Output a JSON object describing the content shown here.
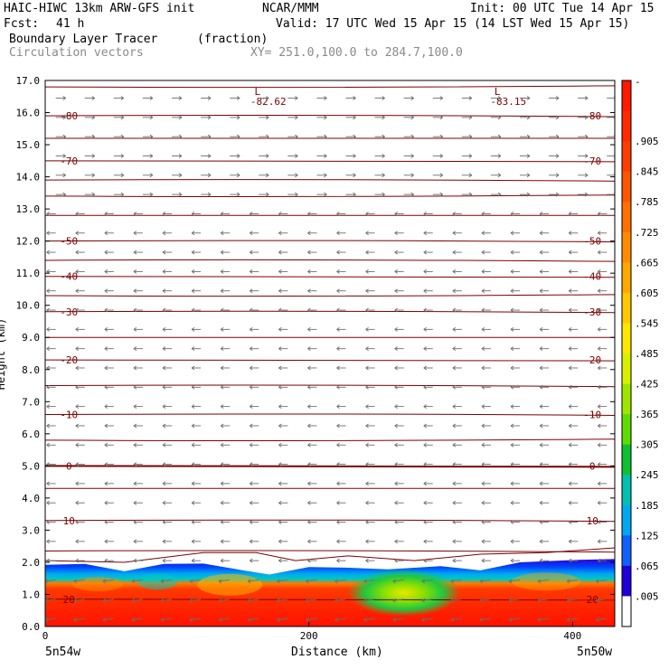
{
  "header": {
    "title_left": "HAIC-HIWC 13km ARW-GFS init",
    "org": "NCAR/MMM",
    "init": "Init: 00 UTC Tue 14 Apr 15",
    "fcst_label": "Fcst:",
    "fcst_value": "41 h",
    "valid": "Valid: 17 UTC Wed 15 Apr 15 (14 LST Wed 15 Apr 15)",
    "field": "Boundary Layer Tracer",
    "field_units": "(fraction)",
    "overlay": "Circulation vectors",
    "xy": "XY= 251.0,100.0 to 284.7,100.0"
  },
  "chart_data": {
    "type": "heatmap",
    "title": "Boundary Layer Tracer",
    "xlabel": "Distance (km)",
    "ylabel": "Height (km)",
    "xlim": [
      0,
      432
    ],
    "ylim": [
      0,
      17
    ],
    "x_ticks": [
      "0",
      "200",
      "400"
    ],
    "x_end_labels": [
      "5n54w",
      "5n50w"
    ],
    "y_ticks": [
      "0.0",
      "1.0",
      "2.0",
      "3.0",
      "4.0",
      "5.0",
      "6.0",
      "7.0",
      "8.0",
      "9.0",
      "10.0",
      "11.0",
      "12.0",
      "13.0",
      "14.0",
      "15.0",
      "16.0",
      "17.0"
    ],
    "colorbar": {
      "labels": [
        "-",
        ".905",
        ".845",
        ".785",
        ".725",
        ".665",
        ".605",
        ".545",
        ".485",
        ".425",
        ".365",
        ".305",
        ".245",
        ".185",
        ".125",
        ".065",
        ".005"
      ],
      "colors": [
        "#ff1a00",
        "#ff2a00",
        "#ff3c00",
        "#ff5500",
        "#ff7000",
        "#ff8c00",
        "#ffa800",
        "#ffc800",
        "#ffe600",
        "#d8f000",
        "#9ee600",
        "#5ddc00",
        "#10c030",
        "#00c0b0",
        "#00a8f0",
        "#1060ff",
        "#2000d8",
        "#ffffff"
      ]
    },
    "boundary_layer_top_km": [
      [
        0,
        1.92
      ],
      [
        30,
        1.95
      ],
      [
        60,
        1.72
      ],
      [
        90,
        1.95
      ],
      [
        120,
        1.96
      ],
      [
        150,
        1.75
      ],
      [
        170,
        1.62
      ],
      [
        200,
        1.85
      ],
      [
        230,
        1.83
      ],
      [
        260,
        1.78
      ],
      [
        300,
        1.88
      ],
      [
        330,
        1.75
      ],
      [
        360,
        2.0
      ],
      [
        400,
        2.07
      ],
      [
        432,
        2.1
      ]
    ],
    "isotherms": [
      {
        "value": -80,
        "km": 15.9,
        "labels": [
          "-80"
        ]
      },
      {
        "value": -70,
        "km": 14.5,
        "labels": [
          "-70"
        ]
      },
      {
        "value": -50,
        "km": 12.0,
        "labels": [
          "-50"
        ]
      },
      {
        "value": -40,
        "km": 10.9,
        "labels": [
          "-40"
        ]
      },
      {
        "value": -30,
        "km": 9.8,
        "labels": [
          "-30"
        ]
      },
      {
        "value": -20,
        "km": 8.3,
        "labels": [
          "-20"
        ]
      },
      {
        "value": -10,
        "km": 6.6,
        "labels": [
          "-10"
        ]
      },
      {
        "value": 0,
        "km": 5.0,
        "labels": [
          "0"
        ]
      },
      {
        "value": 10,
        "km": 3.3,
        "labels": [
          "10"
        ]
      },
      {
        "value": 20,
        "km": 0.85,
        "labels": [
          "20"
        ]
      }
    ],
    "unlabeled_contours_km": [
      16.8,
      15.2,
      13.9,
      13.4,
      12.8,
      11.4,
      10.3,
      9.0,
      7.5,
      5.8,
      4.3,
      2.35
    ],
    "lows": [
      {
        "label": "L",
        "value": "-82.62",
        "x_km": 161,
        "y_km": 16.6
      },
      {
        "label": "L",
        "value": "-83.15",
        "x_km": 343,
        "y_km": 16.6
      }
    ],
    "vector_field": {
      "upper_direction": "east",
      "lower_direction": "west",
      "reversal_height_km": 13.0
    }
  },
  "colors": {
    "contour": "#7a0000",
    "vector": "#6e6e6e",
    "axis": "#000000"
  }
}
